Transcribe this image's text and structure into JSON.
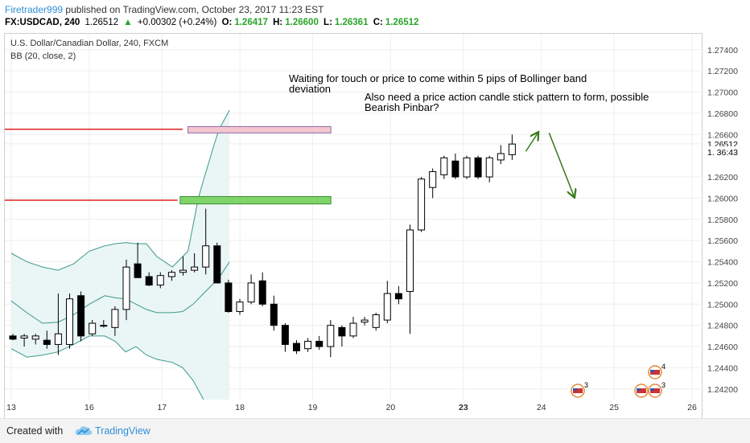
{
  "header": {
    "author": "Firetrader999",
    "published": "published on TradingView.com, October 23, 2017 11:23 EST",
    "symbol": "FX:USDCAD, 240",
    "last": "1.26512",
    "arrow": "▲",
    "change": "+0.00302 (+0.24%)",
    "o_label": "O:",
    "o_value": "1.26417",
    "h_label": "H:",
    "h_value": "1.26600",
    "l_label": "L:",
    "l_value": "1.26361",
    "c_label": "C:",
    "c_value": "1.26512"
  },
  "legend": {
    "title": "U.S. Dollar/Canadian Dollar, 240, FXCM",
    "indicator": "BB (20, close, 2)"
  },
  "annotations": {
    "text1": "Waiting for touch or price to come within 5 pips of Bollinger band deviation",
    "text1_line1": "Waiting for touch or price to come within 5 pips of Bollinger band",
    "text1_line2": "deviation",
    "text2_line1": "Also need a price action candle stick pattern to form, possible",
    "text2_line2": "Bearish Pinbar?"
  },
  "footer": {
    "created": "Created with",
    "brand": "TradingView"
  },
  "colors": {
    "candle_up": "#ffffff",
    "candle_down": "#000000",
    "bb": "#3a9a8a",
    "bb_fill": "#eaf5f5",
    "resistance_line": "#e02020",
    "resistance_box": "#f5c6d0",
    "support_box": "#7fd46a",
    "arrow": "#3a7a1a",
    "grid": "#eeeeee",
    "price_label_bg": "#000000"
  },
  "chart_data": {
    "type": "candlestick",
    "ylim": [
      1.241,
      1.2755
    ],
    "xlim": [
      0,
      131
    ],
    "y_ticks": [
      "1.27400",
      "1.27200",
      "1.27000",
      "1.26800",
      "1.26600",
      "1.26512",
      "1. 36:43",
      "1.26200",
      "1.26000",
      "1.25800",
      "1.25600",
      "1.25400",
      "1.25200",
      "1.25000",
      "1.24800",
      "1.24600",
      "1.24400",
      "1.24200"
    ],
    "x_ticks": [
      {
        "label": "13",
        "x": 0
      },
      {
        "label": "16",
        "x": 15
      },
      {
        "label": "17",
        "x": 29
      },
      {
        "label": "18",
        "x": 44
      },
      {
        "label": "19",
        "x": 58
      },
      {
        "label": "20",
        "x": 73
      },
      {
        "label": "23",
        "x": 87
      },
      {
        "label": "24",
        "x": 102
      },
      {
        "label": "25",
        "x": 116
      },
      {
        "label": "26",
        "x": 131
      }
    ],
    "candles": [
      {
        "o": 1.247,
        "h": 1.2472,
        "l": 1.2466,
        "c": 1.2467
      },
      {
        "o": 1.2468,
        "h": 1.2472,
        "l": 1.246,
        "c": 1.247
      },
      {
        "o": 1.2467,
        "h": 1.2472,
        "l": 1.2462,
        "c": 1.247
      },
      {
        "o": 1.2466,
        "h": 1.2475,
        "l": 1.2458,
        "c": 1.2462
      },
      {
        "o": 1.2462,
        "h": 1.251,
        "l": 1.2452,
        "c": 1.2472
      },
      {
        "o": 1.2462,
        "h": 1.251,
        "l": 1.2458,
        "c": 1.2505
      },
      {
        "o": 1.2508,
        "h": 1.2512,
        "l": 1.2465,
        "c": 1.247
      },
      {
        "o": 1.2472,
        "h": 1.2485,
        "l": 1.247,
        "c": 1.2482
      },
      {
        "o": 1.248,
        "h": 1.2485,
        "l": 1.2478,
        "c": 1.248
      },
      {
        "o": 1.2478,
        "h": 1.2498,
        "l": 1.247,
        "c": 1.2495
      },
      {
        "o": 1.2495,
        "h": 1.2542,
        "l": 1.2485,
        "c": 1.2535
      },
      {
        "o": 1.2538,
        "h": 1.2558,
        "l": 1.2527,
        "c": 1.2525
      },
      {
        "o": 1.2526,
        "h": 1.253,
        "l": 1.2517,
        "c": 1.2518
      },
      {
        "o": 1.2518,
        "h": 1.253,
        "l": 1.2515,
        "c": 1.2527
      },
      {
        "o": 1.2526,
        "h": 1.2532,
        "l": 1.2522,
        "c": 1.253
      },
      {
        "o": 1.253,
        "h": 1.2545,
        "l": 1.2527,
        "c": 1.2532
      },
      {
        "o": 1.2532,
        "h": 1.2548,
        "l": 1.253,
        "c": 1.2535
      },
      {
        "o": 1.2535,
        "h": 1.259,
        "l": 1.2528,
        "c": 1.2555
      },
      {
        "o": 1.2555,
        "h": 1.2558,
        "l": 1.252,
        "c": 1.252
      },
      {
        "o": 1.252,
        "h": 1.2523,
        "l": 1.2492,
        "c": 1.2493
      },
      {
        "o": 1.2493,
        "h": 1.2505,
        "l": 1.249,
        "c": 1.2502
      },
      {
        "o": 1.2502,
        "h": 1.2528,
        "l": 1.25,
        "c": 1.252
      },
      {
        "o": 1.2522,
        "h": 1.253,
        "l": 1.2498,
        "c": 1.25
      },
      {
        "o": 1.25,
        "h": 1.2508,
        "l": 1.2475,
        "c": 1.248
      },
      {
        "o": 1.248,
        "h": 1.2482,
        "l": 1.2455,
        "c": 1.2462
      },
      {
        "o": 1.2463,
        "h": 1.2466,
        "l": 1.2453,
        "c": 1.2456
      },
      {
        "o": 1.2458,
        "h": 1.2468,
        "l": 1.2455,
        "c": 1.2465
      },
      {
        "o": 1.2465,
        "h": 1.247,
        "l": 1.2457,
        "c": 1.246
      },
      {
        "o": 1.246,
        "h": 1.2485,
        "l": 1.245,
        "c": 1.248
      },
      {
        "o": 1.2478,
        "h": 1.248,
        "l": 1.246,
        "c": 1.247
      },
      {
        "o": 1.247,
        "h": 1.2488,
        "l": 1.2468,
        "c": 1.2482
      },
      {
        "o": 1.2483,
        "h": 1.2488,
        "l": 1.248,
        "c": 1.2485
      },
      {
        "o": 1.2478,
        "h": 1.2492,
        "l": 1.2475,
        "c": 1.249
      },
      {
        "o": 1.2485,
        "h": 1.2522,
        "l": 1.2482,
        "c": 1.251
      },
      {
        "o": 1.251,
        "h": 1.2517,
        "l": 1.25,
        "c": 1.2505
      },
      {
        "o": 1.2512,
        "h": 1.2575,
        "l": 1.2472,
        "c": 1.257
      },
      {
        "o": 1.257,
        "h": 1.262,
        "l": 1.2568,
        "c": 1.2618
      },
      {
        "o": 1.261,
        "h": 1.2628,
        "l": 1.26,
        "c": 1.2625
      },
      {
        "o": 1.2622,
        "h": 1.264,
        "l": 1.2618,
        "c": 1.2638
      },
      {
        "o": 1.2635,
        "h": 1.2642,
        "l": 1.2618,
        "c": 1.262
      },
      {
        "o": 1.262,
        "h": 1.264,
        "l": 1.2618,
        "c": 1.2638
      },
      {
        "o": 1.2638,
        "h": 1.264,
        "l": 1.2618,
        "c": 1.262
      },
      {
        "o": 1.262,
        "h": 1.264,
        "l": 1.2615,
        "c": 1.2638
      },
      {
        "o": 1.2636,
        "h": 1.265,
        "l": 1.2632,
        "c": 1.2642
      },
      {
        "o": 1.2641,
        "h": 1.266,
        "l": 1.2636,
        "c": 1.2651
      }
    ],
    "bb_upper": [
      [
        0,
        1.2548
      ],
      [
        3,
        1.254
      ],
      [
        6,
        1.2535
      ],
      [
        9,
        1.2532
      ],
      [
        12,
        1.2538
      ],
      [
        15,
        1.255
      ],
      [
        18,
        1.2555
      ],
      [
        20,
        1.2557
      ],
      [
        22,
        1.2558
      ],
      [
        24,
        1.2557
      ],
      [
        26,
        1.2557
      ],
      [
        28,
        1.2545
      ],
      [
        31,
        1.2535
      ],
      [
        34,
        1.255
      ],
      [
        36,
        1.26
      ],
      [
        37,
        1.2617
      ],
      [
        39,
        1.265
      ],
      [
        40,
        1.2665
      ],
      [
        42,
        1.2683
      ]
    ],
    "bb_middle": [
      [
        0,
        1.2503
      ],
      [
        3,
        1.2492
      ],
      [
        6,
        1.2482
      ],
      [
        9,
        1.2483
      ],
      [
        12,
        1.249
      ],
      [
        15,
        1.25
      ],
      [
        18,
        1.2508
      ],
      [
        20,
        1.2506
      ],
      [
        22,
        1.2505
      ],
      [
        24,
        1.25
      ],
      [
        26,
        1.2495
      ],
      [
        28,
        1.2492
      ],
      [
        31,
        1.2492
      ],
      [
        33,
        1.2493
      ],
      [
        35,
        1.25
      ],
      [
        37,
        1.251
      ],
      [
        39,
        1.252
      ],
      [
        40,
        1.2525
      ],
      [
        42,
        1.254
      ]
    ],
    "bb_lower": [
      [
        0,
        1.2458
      ],
      [
        3,
        1.245
      ],
      [
        6,
        1.2452
      ],
      [
        9,
        1.2455
      ],
      [
        12,
        1.2462
      ],
      [
        15,
        1.247
      ],
      [
        18,
        1.247
      ],
      [
        20,
        1.2465
      ],
      [
        22,
        1.2455
      ],
      [
        24,
        1.246
      ],
      [
        26,
        1.2452
      ],
      [
        28,
        1.2448
      ],
      [
        31,
        1.2445
      ],
      [
        33,
        1.244
      ],
      [
        35,
        1.2428
      ],
      [
        37,
        1.241
      ]
    ],
    "resistance": {
      "price": 1.2665,
      "box": [
        1.26675,
        1.26615
      ]
    },
    "support": {
      "price": 1.2598,
      "box": [
        1.26015,
        1.25945
      ]
    },
    "price_labels": [
      "1.26512",
      "1. 36:43"
    ]
  }
}
